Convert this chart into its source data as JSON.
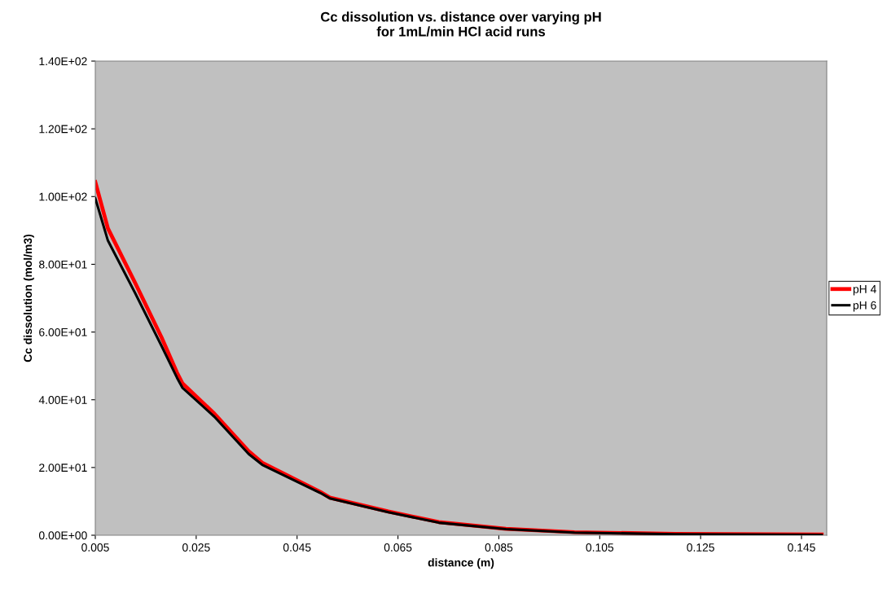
{
  "chart_data": {
    "type": "line",
    "title": "Cc dissolution vs. distance over varying pH\nfor 1mL/min HCl acid runs",
    "xlabel": "distance (m)",
    "ylabel": "Cc dissolution (mol/m3)",
    "x": [
      0.005,
      0.0075,
      0.0129,
      0.0181,
      0.0212,
      0.0223,
      0.0286,
      0.0354,
      0.0381,
      0.0496,
      0.0515,
      0.0631,
      0.0731,
      0.0864,
      0.1,
      0.12,
      0.149
    ],
    "series": [
      {
        "name": "pH 4",
        "color": "#ff0000",
        "values": [
          104.3,
          90.6,
          74.5,
          58.5,
          48.0,
          44.8,
          35.9,
          24.8,
          21.4,
          12.8,
          11.1,
          7.0,
          3.9,
          1.9,
          0.9,
          0.4,
          0.2
        ]
      },
      {
        "name": "pH 6",
        "color": "#000000",
        "values": [
          99.5,
          87.0,
          71.5,
          56.0,
          46.5,
          43.5,
          35.0,
          24.0,
          20.8,
          12.5,
          10.9,
          6.8,
          3.7,
          1.8,
          0.8,
          0.3,
          0.1
        ]
      }
    ],
    "xlim": [
      0.005,
      0.15
    ],
    "xticks": [
      0.005,
      0.025,
      0.045,
      0.065,
      0.085,
      0.105,
      0.125,
      0.145
    ],
    "ylim": [
      0,
      140
    ],
    "yticks": [
      {
        "value": 0,
        "label": "0.00E+00"
      },
      {
        "value": 20,
        "label": "2.00E+01"
      },
      {
        "value": 40,
        "label": "4.00E+01"
      },
      {
        "value": 60,
        "label": "6.00E+01"
      },
      {
        "value": 80,
        "label": "8.00E+01"
      },
      {
        "value": 100,
        "label": "1.00E+02"
      },
      {
        "value": 120,
        "label": "1.20E+02"
      },
      {
        "value": 140,
        "label": "1.40E+02"
      }
    ],
    "grid": false,
    "legend": "right",
    "marker": "none",
    "line_style": "solid"
  }
}
